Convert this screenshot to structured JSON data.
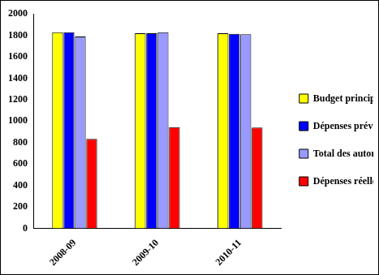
{
  "chart_data": {
    "type": "bar",
    "categories": [
      "2008-09",
      "2009-10",
      "2010-11"
    ],
    "series": [
      {
        "name": "Budget principal des dépenses",
        "color": "#ffff00",
        "values": [
          1830,
          1820,
          1820
        ]
      },
      {
        "name": "Dépenses prévues",
        "color": "#0000ff",
        "values": [
          1830,
          1820,
          1815
        ]
      },
      {
        "name": "Total des autorisations",
        "color": "#9999ff",
        "values": [
          1790,
          1830,
          1810
        ]
      },
      {
        "name": "Dépenses réelles",
        "color": "#ff0000",
        "values": [
          835,
          945,
          940
        ]
      }
    ],
    "ylim": [
      0,
      2000
    ],
    "yticks": [
      0,
      200,
      400,
      600,
      800,
      1000,
      1200,
      1400,
      1600,
      1800,
      2000
    ],
    "grid": false,
    "legend": "right"
  }
}
